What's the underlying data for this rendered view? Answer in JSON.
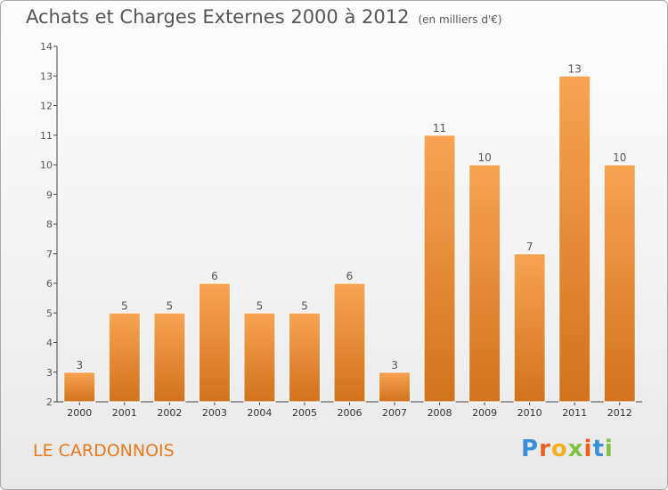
{
  "header": {
    "title": "Achats et Charges Externes 2000 à 2012",
    "unit": "(en milliers d'€)"
  },
  "footer": {
    "place": "LE CARDONNOIS",
    "logo": "Proxiti"
  },
  "colors": {
    "bar_top": "#f7a452",
    "bar_bottom": "#d2721d",
    "axis": "#444444",
    "text": "#555555",
    "place": "#e87a1e",
    "logo_letters": [
      "#3a8fd6",
      "#e8611f",
      "#f2b01e",
      "#7fc242",
      "#e8611f",
      "#3a8fd6",
      "#7fc242"
    ]
  },
  "chart_data": {
    "type": "bar",
    "title": "Achats et Charges Externes 2000 à 2012",
    "subtitle": "(en milliers d'€)",
    "categories": [
      "2000",
      "2001",
      "2002",
      "2003",
      "2004",
      "2005",
      "2006",
      "2007",
      "2008",
      "2009",
      "2010",
      "2011",
      "2012"
    ],
    "values": [
      3,
      5,
      5,
      6,
      5,
      5,
      6,
      3,
      11,
      10,
      7,
      13,
      10
    ],
    "ylim": [
      2,
      14
    ],
    "yticks": [
      2,
      3,
      4,
      5,
      6,
      7,
      8,
      9,
      10,
      11,
      12,
      13,
      14
    ],
    "grid": false,
    "legend": "none",
    "data_labels": true
  }
}
